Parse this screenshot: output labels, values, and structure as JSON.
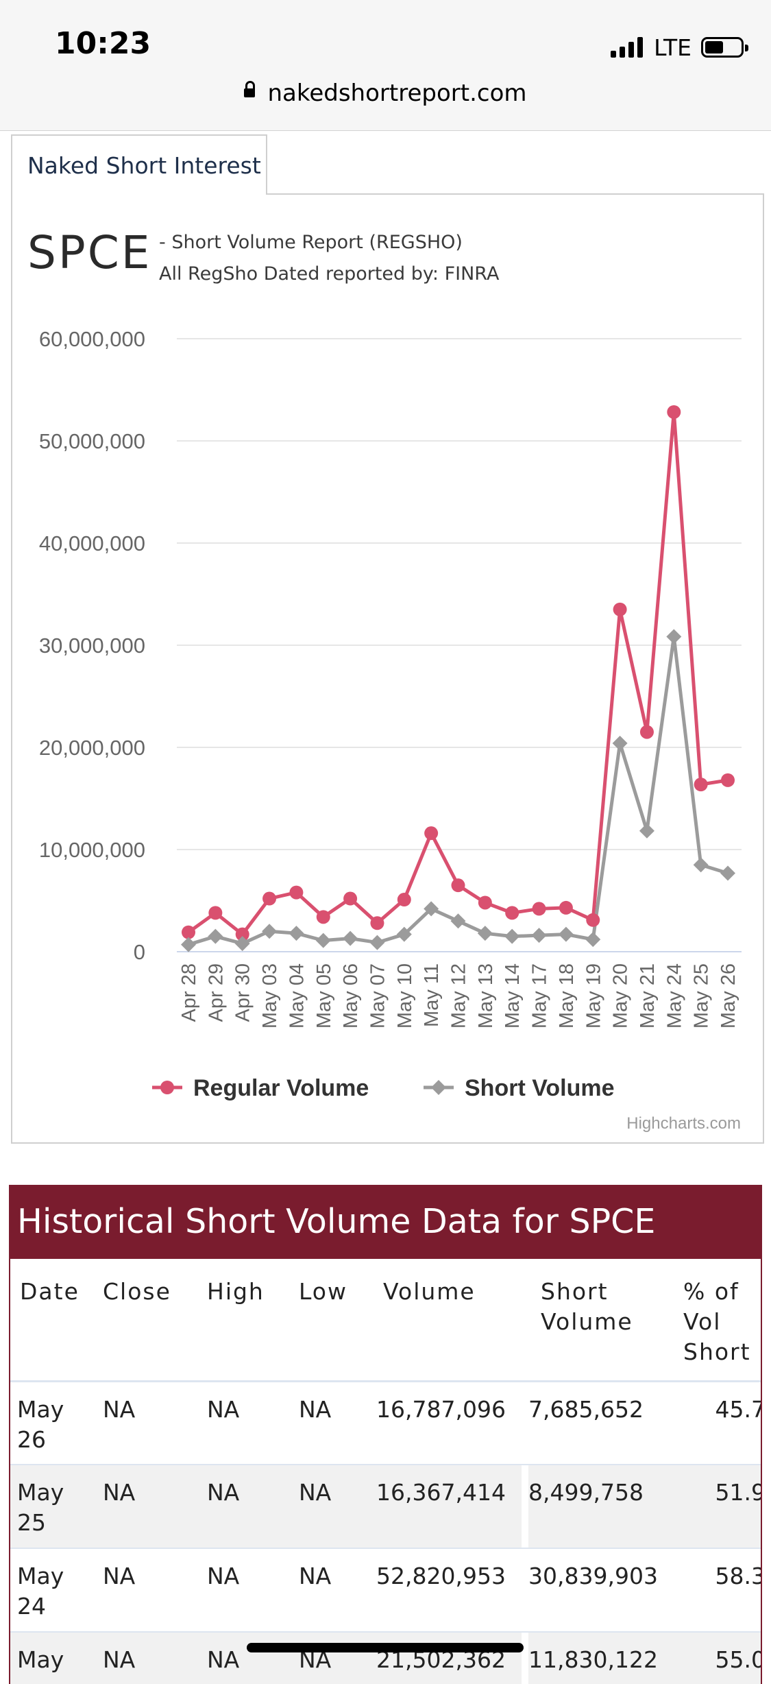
{
  "status_bar": {
    "time": "10:23",
    "network": "LTE"
  },
  "browser": {
    "url": "nakedshortreport.com"
  },
  "tab": {
    "label": "Naked Short Interest"
  },
  "report": {
    "ticker": "SPCE",
    "subtitle": "- Short Volume Report  (REGSHO)",
    "source": "All RegSho Dated reported by: FINRA",
    "credits": "Highcharts.com"
  },
  "chart_data": {
    "type": "line",
    "categories": [
      "Apr 28",
      "Apr 29",
      "Apr 30",
      "May 03",
      "May 04",
      "May 05",
      "May 06",
      "May 07",
      "May 10",
      "May 11",
      "May 12",
      "May 13",
      "May 14",
      "May 17",
      "May 18",
      "May 19",
      "May 20",
      "May 21",
      "May 24",
      "May 25",
      "May 26"
    ],
    "series": [
      {
        "name": "Regular Volume",
        "color": "#d9506f",
        "marker": "circle",
        "values": [
          1900000,
          3800000,
          1700000,
          5200000,
          5800000,
          3400000,
          5200000,
          2800000,
          5100000,
          11600000,
          6500000,
          4800000,
          3800000,
          4200000,
          4300000,
          3100000,
          33500000,
          21502362,
          52820953,
          16367414,
          16787096
        ]
      },
      {
        "name": "Short Volume",
        "color": "#9b9b9b",
        "marker": "diamond",
        "values": [
          700000,
          1500000,
          800000,
          2000000,
          1800000,
          1100000,
          1300000,
          900000,
          1700000,
          4200000,
          3000000,
          1800000,
          1500000,
          1600000,
          1700000,
          1200000,
          20400000,
          11830122,
          30839903,
          8499758,
          7685652
        ]
      }
    ],
    "ylim": [
      0,
      60000000
    ],
    "yticks": [
      "0",
      "10,000,000",
      "20,000,000",
      "30,000,000",
      "40,000,000",
      "50,000,000",
      "60,000,000"
    ],
    "ytick_values": [
      0,
      10000000,
      20000000,
      30000000,
      40000000,
      50000000,
      60000000
    ],
    "grid": true,
    "legend_position": "bottom"
  },
  "history": {
    "title": "Historical Short Volume Data for SPCE",
    "columns": [
      [
        "Date"
      ],
      [
        "Close"
      ],
      [
        "High"
      ],
      [
        "Low"
      ],
      [
        "Volume"
      ],
      [
        "Short",
        "Volume"
      ],
      [
        "% of",
        "Vol",
        "Short"
      ]
    ],
    "rows": [
      {
        "date": [
          "May",
          "26"
        ],
        "close": "NA",
        "high": "NA",
        "low": "NA",
        "volume": "16,787,096",
        "short_volume": "7,685,652",
        "pct_short": "45.7"
      },
      {
        "date": [
          "May",
          "25"
        ],
        "close": "NA",
        "high": "NA",
        "low": "NA",
        "volume": "16,367,414",
        "short_volume": "8,499,758",
        "pct_short": "51.9"
      },
      {
        "date": [
          "May",
          "24"
        ],
        "close": "NA",
        "high": "NA",
        "low": "NA",
        "volume": "52,820,953",
        "short_volume": "30,839,903",
        "pct_short": "58.3"
      },
      {
        "date": [
          "May",
          ""
        ],
        "close": "NA",
        "high": "NA",
        "low": "NA",
        "volume": "21,502,362",
        "short_volume": "11,830,122",
        "pct_short": "55.0"
      }
    ]
  }
}
